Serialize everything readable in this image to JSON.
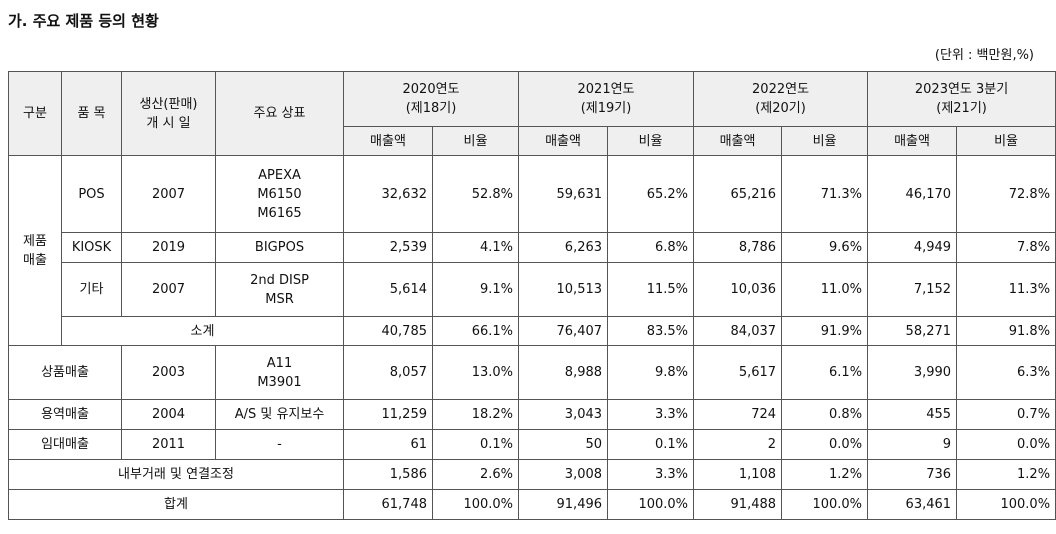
{
  "title": "가. 주요 제품 등의 현황",
  "unit": "(단위 : 백만원,%)",
  "header": {
    "gubun": "구분",
    "pummok": "품 목",
    "start": "생산(판매)\n개 시 일",
    "brand": "주요 상표",
    "years": [
      "2020연도\n(제18기)",
      "2021연도\n(제19기)",
      "2022연도\n(제20기)",
      "2023연도 3분기\n(제21기)"
    ],
    "sales": "매출액",
    "ratio": "비율"
  },
  "groups": {
    "product": "제품\n매출",
    "subtotal": "소계",
    "internal": "내부거래 및 연결조정",
    "total": "합계"
  },
  "rows": [
    {
      "cat": "",
      "item": "POS",
      "start": "2007",
      "brand": "APEXA\nM6150\nM6165",
      "v": [
        "32,632",
        "52.8%",
        "59,631",
        "65.2%",
        "65,216",
        "71.3%",
        "46,170",
        "72.8%"
      ]
    },
    {
      "cat": "",
      "item": "KIOSK",
      "start": "2019",
      "brand": "BIGPOS",
      "v": [
        "2,539",
        "4.1%",
        "6,263",
        "6.8%",
        "8,786",
        "9.6%",
        "4,949",
        "7.8%"
      ]
    },
    {
      "cat": "",
      "item": "기타",
      "start": "2007",
      "brand": "2nd DISP\nMSR",
      "v": [
        "5,614",
        "9.1%",
        "10,513",
        "11.5%",
        "10,036",
        "11.0%",
        "7,152",
        "11.3%"
      ]
    },
    {
      "cat": "",
      "item": "",
      "start": "",
      "brand": "",
      "v": [
        "40,785",
        "66.1%",
        "76,407",
        "83.5%",
        "84,037",
        "91.9%",
        "58,271",
        "91.8%"
      ]
    },
    {
      "cat": "상품매출",
      "item": "",
      "start": "2003",
      "brand": "A11\nM3901",
      "v": [
        "8,057",
        "13.0%",
        "8,988",
        "9.8%",
        "5,617",
        "6.1%",
        "3,990",
        "6.3%"
      ]
    },
    {
      "cat": "용역매출",
      "item": "",
      "start": "2004",
      "brand": "A/S 및 유지보수",
      "v": [
        "11,259",
        "18.2%",
        "3,043",
        "3.3%",
        "724",
        "0.8%",
        "455",
        "0.7%"
      ]
    },
    {
      "cat": "임대매출",
      "item": "",
      "start": "2011",
      "brand": "-",
      "v": [
        "61",
        "0.1%",
        "50",
        "0.1%",
        "2",
        "0.0%",
        "9",
        "0.0%"
      ]
    },
    {
      "cat": "",
      "item": "",
      "start": "",
      "brand": "",
      "v": [
        "1,586",
        "2.6%",
        "3,008",
        "3.3%",
        "1,108",
        "1.2%",
        "736",
        "1.2%"
      ]
    },
    {
      "cat": "",
      "item": "",
      "start": "",
      "brand": "",
      "v": [
        "61,748",
        "100.0%",
        "91,496",
        "100.0%",
        "91,488",
        "100.0%",
        "63,461",
        "100.0%"
      ]
    }
  ]
}
